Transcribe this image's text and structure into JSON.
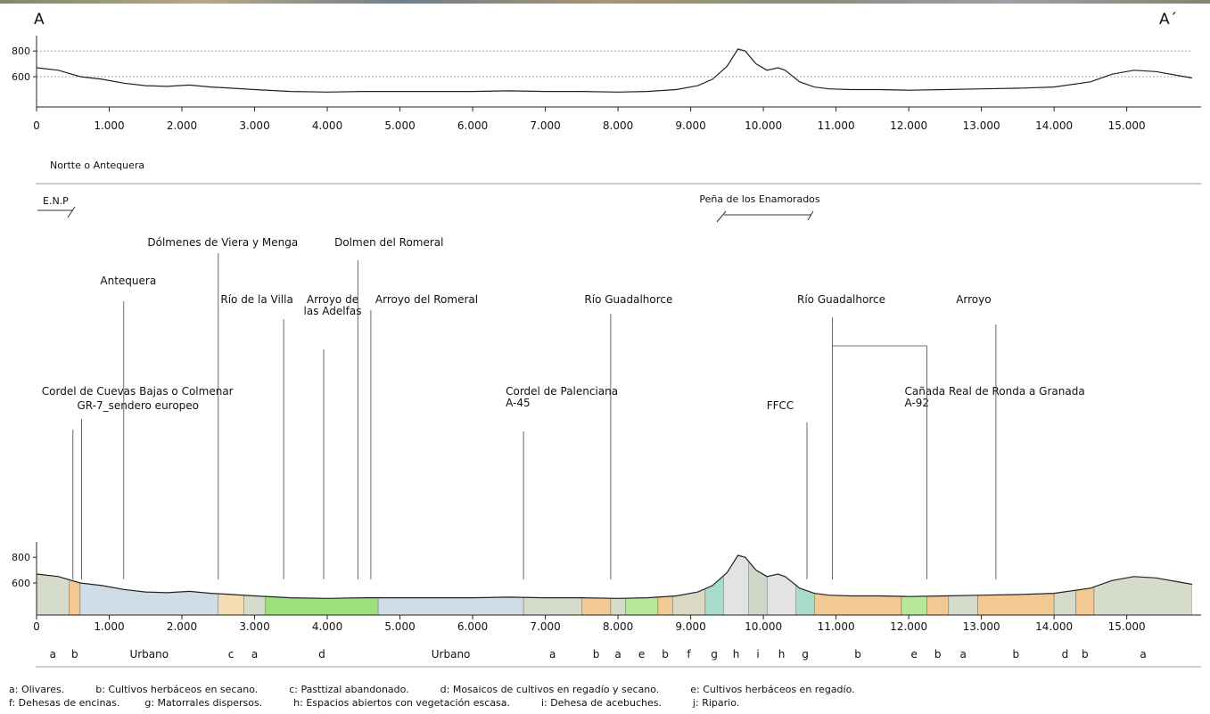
{
  "section": {
    "start_label": "A",
    "end_label": "A´",
    "direction_label": "Nortte o Antequera"
  },
  "chart_data": [
    {
      "type": "line",
      "title": "",
      "xlabel": "",
      "ylabel": "",
      "x_ticks": [
        "0",
        "1.000",
        "2.000",
        "3.000",
        "4.000",
        "5.000",
        "6.000",
        "7.000",
        "8.000",
        "9.000",
        "10.000",
        "11.000",
        "12.000",
        "13.000",
        "14.000",
        "15.000"
      ],
      "y_ticks": [
        "800",
        "600"
      ],
      "xlim": [
        0,
        15900
      ],
      "ylim": [
        420,
        850
      ],
      "x": [
        0,
        300,
        600,
        900,
        1200,
        1500,
        1800,
        2100,
        2400,
        2700,
        3000,
        3500,
        4000,
        4500,
        5000,
        5500,
        6000,
        6500,
        7000,
        7500,
        8000,
        8400,
        8800,
        9100,
        9300,
        9500,
        9650,
        9750,
        9900,
        10050,
        10200,
        10300,
        10500,
        10700,
        10900,
        11200,
        11600,
        12000,
        12500,
        13000,
        13500,
        14000,
        14500,
        14800,
        15100,
        15400,
        15700,
        15900
      ],
      "y": [
        670,
        650,
        600,
        580,
        550,
        530,
        525,
        535,
        520,
        510,
        500,
        485,
        480,
        485,
        485,
        485,
        485,
        490,
        485,
        485,
        480,
        485,
        500,
        530,
        580,
        680,
        815,
        800,
        700,
        650,
        670,
        650,
        560,
        520,
        505,
        500,
        500,
        495,
        500,
        505,
        510,
        520,
        560,
        620,
        650,
        640,
        610,
        590
      ]
    },
    {
      "type": "area",
      "title": "",
      "xlabel": "",
      "ylabel": "",
      "x_ticks": [
        "0",
        "1.000",
        "2.000",
        "3.000",
        "4.000",
        "5.000",
        "6.000",
        "7.000",
        "8.000",
        "9.000",
        "10.000",
        "11.000",
        "12.000",
        "13.000",
        "14.000",
        "15.000"
      ],
      "y_ticks": [
        "800",
        "600"
      ],
      "xlim": [
        0,
        15900
      ],
      "ylim": [
        420,
        850
      ],
      "x": [
        0,
        300,
        600,
        900,
        1200,
        1500,
        1800,
        2100,
        2400,
        2700,
        3000,
        3500,
        4000,
        4500,
        5000,
        5500,
        6000,
        6500,
        7000,
        7500,
        8000,
        8400,
        8800,
        9100,
        9300,
        9500,
        9650,
        9750,
        9900,
        10050,
        10200,
        10300,
        10500,
        10700,
        10900,
        11200,
        11600,
        12000,
        12500,
        13000,
        13500,
        14000,
        14500,
        14800,
        15100,
        15400,
        15700,
        15900
      ],
      "y": [
        670,
        650,
        600,
        580,
        550,
        530,
        525,
        535,
        520,
        510,
        500,
        485,
        480,
        485,
        485,
        485,
        485,
        490,
        485,
        485,
        480,
        485,
        500,
        530,
        580,
        680,
        815,
        800,
        700,
        650,
        670,
        650,
        560,
        520,
        505,
        500,
        500,
        495,
        500,
        505,
        510,
        520,
        560,
        620,
        650,
        640,
        610,
        590
      ],
      "land_use_segments": [
        {
          "from": 0,
          "to": 450,
          "code": "a",
          "color": "#d6dccb"
        },
        {
          "from": 450,
          "to": 600,
          "code": "b",
          "color": "#f2c893"
        },
        {
          "from": 600,
          "to": 2500,
          "code": "Urbano",
          "color": "#cfdde6"
        },
        {
          "from": 2500,
          "to": 2850,
          "code": "c",
          "color": "#f4ddb2"
        },
        {
          "from": 2850,
          "to": 3150,
          "code": "a",
          "color": "#d6dccb"
        },
        {
          "from": 3150,
          "to": 4700,
          "code": "d",
          "color": "#9ee07c"
        },
        {
          "from": 4700,
          "to": 6700,
          "code": "Urbano",
          "color": "#cfdde6"
        },
        {
          "from": 6700,
          "to": 7500,
          "code": "a",
          "color": "#d6dccb"
        },
        {
          "from": 7500,
          "to": 7900,
          "code": "b",
          "color": "#f2c893"
        },
        {
          "from": 7900,
          "to": 8100,
          "code": "a",
          "color": "#d6dccb"
        },
        {
          "from": 8100,
          "to": 8550,
          "code": "e",
          "color": "#b7e89a"
        },
        {
          "from": 8550,
          "to": 8750,
          "code": "b",
          "color": "#f2c893"
        },
        {
          "from": 8750,
          "to": 9200,
          "code": "f",
          "color": "#d9d9c4"
        },
        {
          "from": 9200,
          "to": 9450,
          "code": "g",
          "color": "#a9dcc8"
        },
        {
          "from": 9450,
          "to": 9800,
          "code": "h",
          "color": "#e3e3e3"
        },
        {
          "from": 9800,
          "to": 10050,
          "code": "i",
          "color": "#cfd8c8"
        },
        {
          "from": 10050,
          "to": 10450,
          "code": "h",
          "color": "#e3e3e3"
        },
        {
          "from": 10450,
          "to": 10700,
          "code": "g",
          "color": "#a9dcc8"
        },
        {
          "from": 10700,
          "to": 11900,
          "code": "b",
          "color": "#f2c893"
        },
        {
          "from": 11900,
          "to": 12250,
          "code": "e",
          "color": "#b7e89a"
        },
        {
          "from": 12250,
          "to": 12550,
          "code": "b",
          "color": "#f2c893"
        },
        {
          "from": 12550,
          "to": 12950,
          "code": "a",
          "color": "#d6dccb"
        },
        {
          "from": 12950,
          "to": 14000,
          "code": "b",
          "color": "#f2c893"
        },
        {
          "from": 14000,
          "to": 14300,
          "code": "d",
          "color": "#d6dccb"
        },
        {
          "from": 14300,
          "to": 14550,
          "code": "b",
          "color": "#f2c893"
        },
        {
          "from": 14550,
          "to": 15900,
          "code": "a",
          "color": "#d6dccb"
        }
      ]
    }
  ],
  "bracket_labels": {
    "enp": "E.N.P",
    "pena": "Peña de los Enamorados"
  },
  "annotations": [
    {
      "line1": "Cordel de Cuevas Bajas o Colmenar",
      "line2": "",
      "x": 500
    },
    {
      "line1": "GR-7_sendero europeo",
      "line2": "",
      "x": 620
    },
    {
      "line1": "Antequera",
      "line2": "",
      "x": 1200
    },
    {
      "line1": "Dólmenes de Viera y Menga",
      "line2": "",
      "x": 2500
    },
    {
      "line1": "Río de la Villa",
      "line2": "",
      "x": 3400
    },
    {
      "line1": "Arroyo de",
      "line2": "las Adelfas",
      "x": 3950
    },
    {
      "line1": "Dolmen del Romeral",
      "line2": "",
      "x": 4420
    },
    {
      "line1": "Arroyo del Romeral",
      "line2": "",
      "x": 4600
    },
    {
      "line1": "Cordel de Palenciana",
      "line2": "A-45",
      "x": 6700
    },
    {
      "line1": "Río Guadalhorce",
      "line2": "",
      "x": 7900
    },
    {
      "line1": "FFCC",
      "line2": "",
      "x": 10600
    },
    {
      "line1": "Río Guadalhorce",
      "line2": "",
      "x": 10950
    },
    {
      "line1": "Cañada Real de Ronda a Granada",
      "line2": "A-92",
      "x": 12250
    },
    {
      "line1": "Arroyo",
      "line2": "",
      "x": 13200
    }
  ],
  "legend": {
    "line1": "a: Olivares.          b: Cultivos herbáceos en secano.          c: Pasttizal abandonado.          d: Mosaicos de cultivos en regadío y secano.          e: Cultivos herbáceos en regadío.",
    "line2": "f: Dehesas de encinas.        g: Matorrales dispersos.          h: Espacios abiertos con vegetación escasa.          i: Dehesa de acebuches.          j: Ripario."
  }
}
